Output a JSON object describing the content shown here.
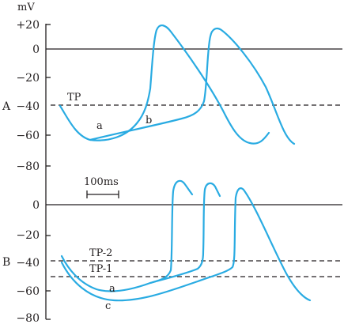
{
  "unit": "mV",
  "panels": [
    {
      "label": "A",
      "ticks": [
        "+20",
        "0",
        "−20",
        "−40",
        "−60",
        "−80"
      ],
      "threshold_labels": [
        "TP"
      ],
      "curve_labels": [
        "a",
        "b"
      ]
    },
    {
      "label": "B",
      "ticks": [
        "0",
        "−20",
        "−40",
        "−60",
        "−80"
      ],
      "threshold_labels": [
        "TP-2",
        "TP-1"
      ],
      "curve_labels": [
        "a",
        "c"
      ]
    }
  ],
  "scale_bar": {
    "label": "100ms"
  },
  "colors": {
    "trace": "#29abe2",
    "axis": "#231f20"
  }
}
